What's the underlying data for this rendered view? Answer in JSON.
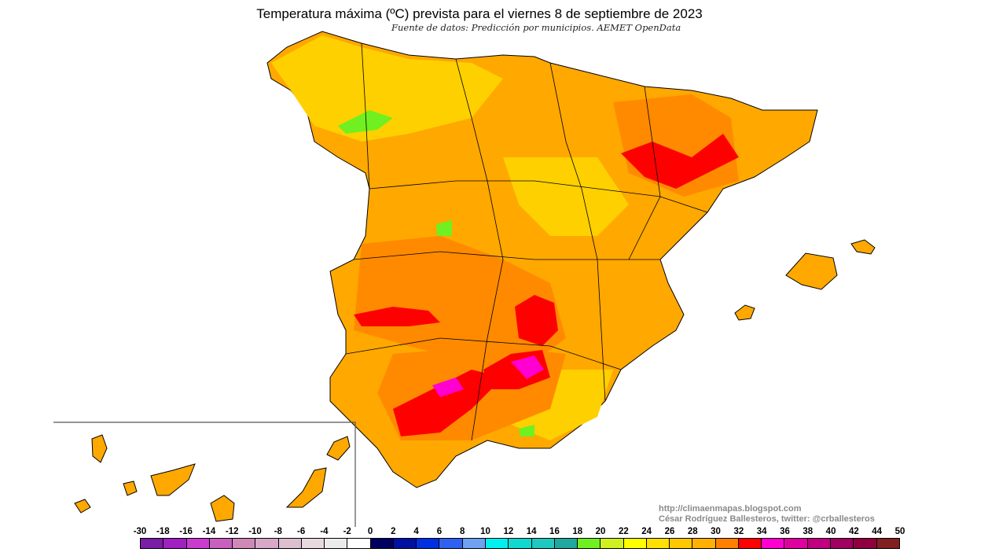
{
  "title": "Temperatura máxima (ºC) prevista para el viernes 8 de septiembre de 2023",
  "subtitle": "Fuente de datos: Predicción por municipios. AEMET OpenData",
  "credits": {
    "url": "http://climaenmapas.blogspot.com",
    "author": "César Rodríguez Ballesteros, twitter: @crballesteros"
  },
  "legend": {
    "labels": [
      "-30",
      "-18",
      "-16",
      "-14",
      "-12",
      "-10",
      "-8",
      "-6",
      "-4",
      "-2",
      "0",
      "2",
      "4",
      "6",
      "8",
      "10",
      "12",
      "14",
      "16",
      "18",
      "20",
      "22",
      "24",
      "26",
      "28",
      "30",
      "32",
      "34",
      "36",
      "38",
      "40",
      "42",
      "44",
      "50"
    ],
    "colors": [
      "#7a1ea6",
      "#a020c0",
      "#c83cd0",
      "#c860c0",
      "#d088b8",
      "#d8a8c8",
      "#dcc0d0",
      "#e8d8e0",
      "#ebebeb",
      "#ffffff",
      "#000060",
      "#0010a0",
      "#0030e0",
      "#3060f0",
      "#70a0f0",
      "#00f0f0",
      "#10d8d0",
      "#20c8c0",
      "#20a8a0",
      "#70f020",
      "#d0f020",
      "#ffff00",
      "#ffe000",
      "#ffc800",
      "#ffb000",
      "#ff8000",
      "#ff0000",
      "#ff00d0",
      "#e000a0",
      "#c00080",
      "#a00060",
      "#900040",
      "#802020"
    ]
  },
  "map_colors": {
    "base": "#ffa800",
    "warm": "#ff8a00",
    "hot": "#ff0000",
    "veryhot": "#ff00d0",
    "mild": "#ffd000",
    "cool": "#70f020"
  }
}
